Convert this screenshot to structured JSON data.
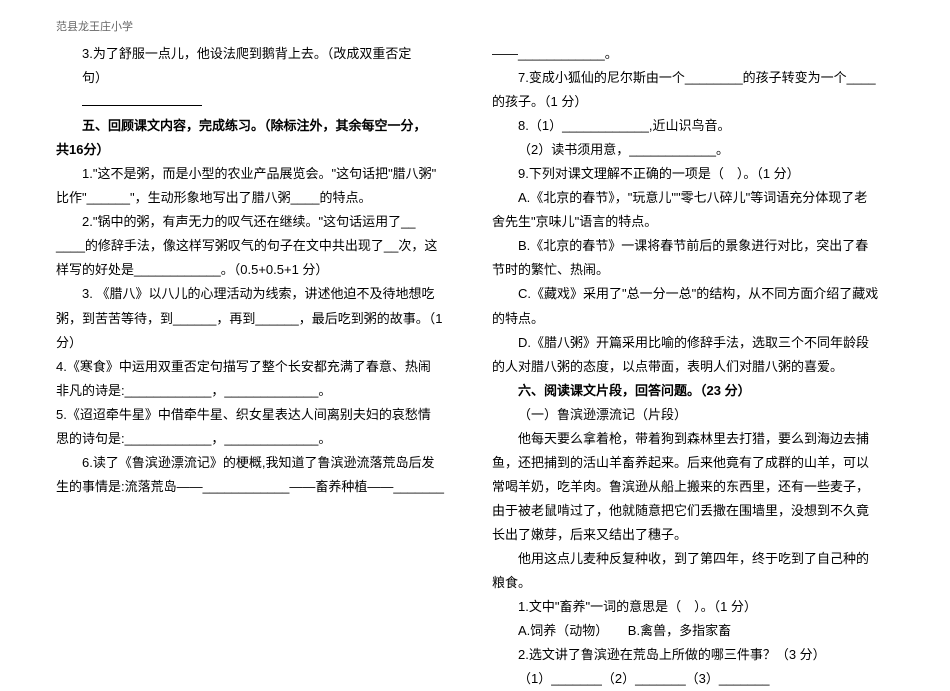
{
  "header": "范县龙王庄小学",
  "left": {
    "q3a": "3.为了舒服一点儿，他设法爬到鹅背上去。（改成双重否定",
    "q3b": "句）",
    "sec5a": "五、回顾课文内容，完成练习。（除标注外，其余每空一分，",
    "sec5b": "共16分）",
    "q51a": "1.\"这不是粥，而是小型的农业产品展览会。\"这句话把\"腊八粥\"",
    "q51b": "比作\"______\"，生动形象地写出了腊八粥____的特点。",
    "q52a": "2.\"锅中的粥，有声无力的叹气还在继续。\"这句话运用了__",
    "q52b": "____的修辞手法，像这样写粥叹气的句子在文中共出现了__次，这",
    "q52c": "样写的好处是____________。（0.5+0.5+1 分）",
    "q53a": "3. 《腊八》以八儿的心理活动为线索，讲述他迫不及待地想吃",
    "q53b": "粥，到苦苦等待，到______，再到______，最后吃到粥的故事。（1",
    "q53c": "分）",
    "q54": "4.《寒食》中运用双重否定句描写了整个长安都充满了春意、热闹",
    "q54b": "非凡的诗是:____________，_____________。",
    "q55": "5.《迢迢牵牛星》中借牵牛星、织女星表达人间离别夫妇的哀愁情",
    "q55b": "思的诗句是:____________，_____________。",
    "q56a": "6.读了《鲁滨逊漂流记》的梗概,我知道了鲁滨逊流落荒岛后发",
    "q56b": "生的事情是:流落荒岛——____________——畜养种植——_______"
  },
  "right": {
    "cont": "——____________。",
    "q7a": "7.变成小狐仙的尼尔斯由一个________的孩子转变为一个____",
    "q7b": "的孩子。（1 分）",
    "q8a": "8.（1）____________,近山识鸟音。",
    "q8b": "（2）读书须用意，____________。",
    "q9a": "9.下列对课文理解不正确的一项是（　）。（1 分）",
    "q9A1": "A.《北京的春节》，\"玩意儿\"\"零七八碎儿\"等词语充分体现了老",
    "q9A2": "舍先生\"京味儿\"语言的特点。",
    "q9B1": "B.《北京的春节》一课将春节前后的景象进行对比，突出了春",
    "q9B2": "节时的繁忙、热闹。",
    "q9C1": "C.《藏戏》采用了\"总一分一总\"的结构，从不同方面介绍了藏戏",
    "q9C2": "的特点。",
    "q9D1": "D.《腊八粥》开篇采用比喻的修辞手法，选取三个不同年龄段",
    "q9D2": "的人对腊八粥的态度，以点带面，表明人们对腊八粥的喜爱。",
    "sec6": "六、阅读课文片段，回答问题。（23 分）",
    "t1": "（一）鲁滨逊漂流记（片段）",
    "p1a": "他每天要么拿着枪，带着狗到森林里去打猎，要么到海边去捕",
    "p1b": "鱼，还把捕到的活山羊畜养起来。后来他竟有了成群的山羊，可以",
    "p1c": "常喝羊奶，吃羊肉。鲁滨逊从船上搬来的东西里，还有一些麦子，",
    "p1d": "由于被老鼠啃过了，他就随意把它们丢撒在围墙里，没想到不久竟",
    "p1e": "长出了嫩芽，后来又结出了穗子。",
    "p2a": "他用这点儿麦种反复种收，到了第四年，终于吃到了自己种的",
    "p2b": "粮食。",
    "pq1": "1.文中\"畜养\"一词的意思是（　）。（1 分）",
    "pq1o": "A.饲养（动物）　　B.禽兽，多指家畜",
    "pq2": "2.选文讲了鲁滨逊在荒岛上所做的哪三件事？（3 分）",
    "pq2b": "（1）_______（2）_______（3）_______"
  }
}
